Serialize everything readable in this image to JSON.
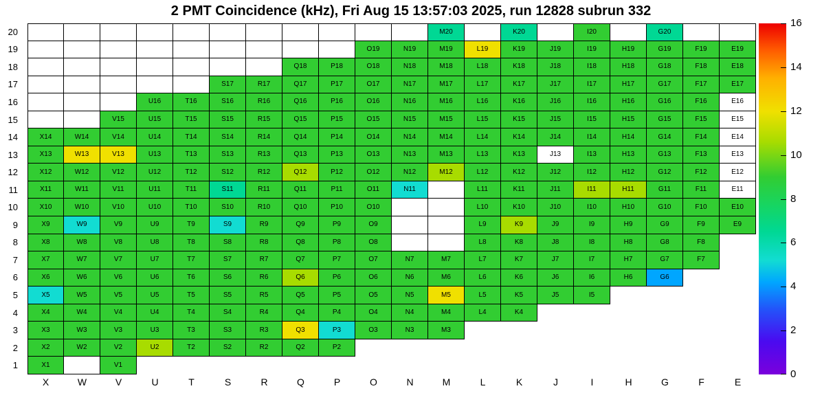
{
  "title": "2 PMT Coincidence (kHz), Fri Aug 15 13:57:03 2025, run 12828 subrun 332",
  "chart_data": {
    "type": "heatmap",
    "title": "2 PMT Coincidence (kHz), Fri Aug 15 13:57:03 2025, run 12828 subrun 332",
    "unit": "kHz",
    "columns": [
      "X",
      "W",
      "V",
      "U",
      "T",
      "S",
      "R",
      "Q",
      "P",
      "O",
      "N",
      "M",
      "L",
      "K",
      "J",
      "I",
      "H",
      "G",
      "F",
      "E"
    ],
    "row_labels_top_to_bottom": [
      "20",
      "19",
      "18",
      "17",
      "16",
      "15",
      "14",
      "13",
      "12",
      "11",
      "10",
      "9",
      "8",
      "7",
      "6",
      "5",
      "4",
      "3",
      "2",
      "1"
    ],
    "palette": {
      "g": "#32CD32",
      "yg": "#A8DC00",
      "y": "#F0E000",
      "c": "#12DCD2",
      "t": "#00D894",
      "b": "#00A6FF",
      "w": "#FFFFFF"
    },
    "approx_value_kHz": {
      "g": 9,
      "yg": 10.5,
      "y": 12,
      "c": 5,
      "t": 7,
      "b": 4,
      "w": null
    },
    "cells": [
      [
        "w",
        "w",
        "w",
        "w",
        "w",
        "w",
        "w",
        "w",
        "w",
        "w",
        "w",
        [
          "M20",
          "t"
        ],
        "w",
        [
          "K20",
          "t"
        ],
        "w",
        [
          "I20",
          "g"
        ],
        "w",
        [
          "G20",
          "t"
        ],
        "w",
        "w"
      ],
      [
        "w",
        "w",
        "w",
        "w",
        "w",
        "w",
        "w",
        "w",
        "w",
        [
          "O19",
          "g"
        ],
        [
          "N19",
          "g"
        ],
        [
          "M19",
          "g"
        ],
        [
          "L19",
          "y"
        ],
        [
          "K19",
          "g"
        ],
        [
          "J19",
          "g"
        ],
        [
          "I19",
          "g"
        ],
        [
          "H19",
          "g"
        ],
        [
          "G19",
          "g"
        ],
        [
          "F19",
          "g"
        ],
        [
          "E19",
          "g"
        ]
      ],
      [
        "w",
        "w",
        "w",
        "w",
        "w",
        "w",
        "w",
        [
          "Q18",
          "g"
        ],
        [
          "P18",
          "g"
        ],
        [
          "O18",
          "g"
        ],
        [
          "N18",
          "g"
        ],
        [
          "M18",
          "g"
        ],
        [
          "L18",
          "g"
        ],
        [
          "K18",
          "g"
        ],
        [
          "J18",
          "g"
        ],
        [
          "I18",
          "g"
        ],
        [
          "H18",
          "g"
        ],
        [
          "G18",
          "g"
        ],
        [
          "F18",
          "g"
        ],
        [
          "E18",
          "g"
        ]
      ],
      [
        "w",
        "w",
        "w",
        "w",
        "w",
        [
          "S17",
          "g"
        ],
        [
          "R17",
          "g"
        ],
        [
          "Q17",
          "g"
        ],
        [
          "P17",
          "g"
        ],
        [
          "O17",
          "g"
        ],
        [
          "N17",
          "g"
        ],
        [
          "M17",
          "g"
        ],
        [
          "L17",
          "g"
        ],
        [
          "K17",
          "g"
        ],
        [
          "J17",
          "g"
        ],
        [
          "I17",
          "g"
        ],
        [
          "H17",
          "g"
        ],
        [
          "G17",
          "g"
        ],
        [
          "F17",
          "g"
        ],
        [
          "E17",
          "g"
        ]
      ],
      [
        "w",
        "w",
        "w",
        [
          "U16",
          "g"
        ],
        [
          "T16",
          "g"
        ],
        [
          "S16",
          "g"
        ],
        [
          "R16",
          "g"
        ],
        [
          "Q16",
          "g"
        ],
        [
          "P16",
          "g"
        ],
        [
          "O16",
          "g"
        ],
        [
          "N16",
          "g"
        ],
        [
          "M16",
          "g"
        ],
        [
          "L16",
          "g"
        ],
        [
          "K16",
          "g"
        ],
        [
          "J16",
          "g"
        ],
        [
          "I16",
          "g"
        ],
        [
          "H16",
          "g"
        ],
        [
          "G16",
          "g"
        ],
        [
          "F16",
          "g"
        ],
        [
          "E16",
          "w"
        ]
      ],
      [
        "w",
        "w",
        [
          "V15",
          "g"
        ],
        [
          "U15",
          "g"
        ],
        [
          "T15",
          "g"
        ],
        [
          "S15",
          "g"
        ],
        [
          "R15",
          "g"
        ],
        [
          "Q15",
          "g"
        ],
        [
          "P15",
          "g"
        ],
        [
          "O15",
          "g"
        ],
        [
          "N15",
          "g"
        ],
        [
          "M15",
          "g"
        ],
        [
          "L15",
          "g"
        ],
        [
          "K15",
          "g"
        ],
        [
          "J15",
          "g"
        ],
        [
          "I15",
          "g"
        ],
        [
          "H15",
          "g"
        ],
        [
          "G15",
          "g"
        ],
        [
          "F15",
          "g"
        ],
        [
          "E15",
          "w"
        ]
      ],
      [
        [
          "X14",
          "g"
        ],
        [
          "W14",
          "g"
        ],
        [
          "V14",
          "g"
        ],
        [
          "U14",
          "g"
        ],
        [
          "T14",
          "g"
        ],
        [
          "S14",
          "g"
        ],
        [
          "R14",
          "g"
        ],
        [
          "Q14",
          "g"
        ],
        [
          "P14",
          "g"
        ],
        [
          "O14",
          "g"
        ],
        [
          "N14",
          "g"
        ],
        [
          "M14",
          "g"
        ],
        [
          "L14",
          "g"
        ],
        [
          "K14",
          "g"
        ],
        [
          "J14",
          "g"
        ],
        [
          "I14",
          "g"
        ],
        [
          "H14",
          "g"
        ],
        [
          "G14",
          "g"
        ],
        [
          "F14",
          "g"
        ],
        [
          "E14",
          "w"
        ]
      ],
      [
        [
          "X13",
          "g"
        ],
        [
          "W13",
          "y"
        ],
        [
          "V13",
          "y"
        ],
        [
          "U13",
          "g"
        ],
        [
          "T13",
          "g"
        ],
        [
          "S13",
          "g"
        ],
        [
          "R13",
          "g"
        ],
        [
          "Q13",
          "g"
        ],
        [
          "P13",
          "g"
        ],
        [
          "O13",
          "g"
        ],
        [
          "N13",
          "g"
        ],
        [
          "M13",
          "g"
        ],
        [
          "L13",
          "g"
        ],
        [
          "K13",
          "g"
        ],
        [
          "J13",
          "w"
        ],
        [
          "I13",
          "g"
        ],
        [
          "H13",
          "g"
        ],
        [
          "G13",
          "g"
        ],
        [
          "F13",
          "g"
        ],
        [
          "E13",
          "w"
        ]
      ],
      [
        [
          "X12",
          "g"
        ],
        [
          "W12",
          "g"
        ],
        [
          "V12",
          "g"
        ],
        [
          "U12",
          "g"
        ],
        [
          "T12",
          "g"
        ],
        [
          "S12",
          "g"
        ],
        [
          "R12",
          "g"
        ],
        [
          "Q12",
          "yg"
        ],
        [
          "P12",
          "g"
        ],
        [
          "O12",
          "g"
        ],
        [
          "N12",
          "g"
        ],
        [
          "M12",
          "yg"
        ],
        [
          "L12",
          "g"
        ],
        [
          "K12",
          "g"
        ],
        [
          "J12",
          "g"
        ],
        [
          "I12",
          "g"
        ],
        [
          "H12",
          "g"
        ],
        [
          "G12",
          "g"
        ],
        [
          "F12",
          "g"
        ],
        [
          "E12",
          "w"
        ]
      ],
      [
        [
          "X11",
          "g"
        ],
        [
          "W11",
          "g"
        ],
        [
          "V11",
          "g"
        ],
        [
          "U11",
          "g"
        ],
        [
          "T11",
          "g"
        ],
        [
          "S11",
          "t"
        ],
        [
          "R11",
          "g"
        ],
        [
          "Q11",
          "g"
        ],
        [
          "P11",
          "g"
        ],
        [
          "O11",
          "g"
        ],
        [
          "N11",
          "c"
        ],
        "w",
        [
          "L11",
          "g"
        ],
        [
          "K11",
          "g"
        ],
        [
          "J11",
          "g"
        ],
        [
          "I11",
          "yg"
        ],
        [
          "H11",
          "yg"
        ],
        [
          "G11",
          "g"
        ],
        [
          "F11",
          "g"
        ],
        [
          "E11",
          "w"
        ]
      ],
      [
        [
          "X10",
          "g"
        ],
        [
          "W10",
          "g"
        ],
        [
          "V10",
          "g"
        ],
        [
          "U10",
          "g"
        ],
        [
          "T10",
          "g"
        ],
        [
          "S10",
          "g"
        ],
        [
          "R10",
          "g"
        ],
        [
          "Q10",
          "g"
        ],
        [
          "P10",
          "g"
        ],
        [
          "O10",
          "g"
        ],
        "w",
        "w",
        [
          "L10",
          "g"
        ],
        [
          "K10",
          "g"
        ],
        [
          "J10",
          "g"
        ],
        [
          "I10",
          "g"
        ],
        [
          "H10",
          "g"
        ],
        [
          "G10",
          "g"
        ],
        [
          "F10",
          "g"
        ],
        [
          "E10",
          "g"
        ]
      ],
      [
        [
          "X9",
          "g"
        ],
        [
          "W9",
          "c"
        ],
        [
          "V9",
          "g"
        ],
        [
          "U9",
          "g"
        ],
        [
          "T9",
          "g"
        ],
        [
          "S9",
          "c"
        ],
        [
          "R9",
          "g"
        ],
        [
          "Q9",
          "g"
        ],
        [
          "P9",
          "g"
        ],
        [
          "O9",
          "g"
        ],
        "w",
        "w",
        [
          "L9",
          "g"
        ],
        [
          "K9",
          "yg"
        ],
        [
          "J9",
          "g"
        ],
        [
          "I9",
          "g"
        ],
        [
          "H9",
          "g"
        ],
        [
          "G9",
          "g"
        ],
        [
          "F9",
          "g"
        ],
        [
          "E9",
          "g"
        ]
      ],
      [
        [
          "X8",
          "g"
        ],
        [
          "W8",
          "g"
        ],
        [
          "V8",
          "g"
        ],
        [
          "U8",
          "g"
        ],
        [
          "T8",
          "g"
        ],
        [
          "S8",
          "g"
        ],
        [
          "R8",
          "g"
        ],
        [
          "Q8",
          "g"
        ],
        [
          "P8",
          "g"
        ],
        [
          "O8",
          "g"
        ],
        "w",
        "w",
        [
          "L8",
          "g"
        ],
        [
          "K8",
          "g"
        ],
        [
          "J8",
          "g"
        ],
        [
          "I8",
          "g"
        ],
        [
          "H8",
          "g"
        ],
        [
          "G8",
          "g"
        ],
        [
          "F8",
          "g"
        ],
        0
      ],
      [
        [
          "X7",
          "g"
        ],
        [
          "W7",
          "g"
        ],
        [
          "V7",
          "g"
        ],
        [
          "U7",
          "g"
        ],
        [
          "T7",
          "g"
        ],
        [
          "S7",
          "g"
        ],
        [
          "R7",
          "g"
        ],
        [
          "Q7",
          "g"
        ],
        [
          "P7",
          "g"
        ],
        [
          "O7",
          "g"
        ],
        [
          "N7",
          "g"
        ],
        [
          "M7",
          "g"
        ],
        [
          "L7",
          "g"
        ],
        [
          "K7",
          "g"
        ],
        [
          "J7",
          "g"
        ],
        [
          "I7",
          "g"
        ],
        [
          "H7",
          "g"
        ],
        [
          "G7",
          "g"
        ],
        [
          "F7",
          "g"
        ],
        0
      ],
      [
        [
          "X6",
          "g"
        ],
        [
          "W6",
          "g"
        ],
        [
          "V6",
          "g"
        ],
        [
          "U6",
          "g"
        ],
        [
          "T6",
          "g"
        ],
        [
          "S6",
          "g"
        ],
        [
          "R6",
          "g"
        ],
        [
          "Q6",
          "yg"
        ],
        [
          "P6",
          "g"
        ],
        [
          "O6",
          "g"
        ],
        [
          "N6",
          "g"
        ],
        [
          "M6",
          "g"
        ],
        [
          "L6",
          "g"
        ],
        [
          "K6",
          "g"
        ],
        [
          "J6",
          "g"
        ],
        [
          "I6",
          "g"
        ],
        [
          "H6",
          "g"
        ],
        [
          "G6",
          "b"
        ],
        0,
        0
      ],
      [
        [
          "X5",
          "c"
        ],
        [
          "W5",
          "g"
        ],
        [
          "V5",
          "g"
        ],
        [
          "U5",
          "g"
        ],
        [
          "T5",
          "g"
        ],
        [
          "S5",
          "g"
        ],
        [
          "R5",
          "g"
        ],
        [
          "Q5",
          "g"
        ],
        [
          "P5",
          "g"
        ],
        [
          "O5",
          "g"
        ],
        [
          "N5",
          "g"
        ],
        [
          "M5",
          "y"
        ],
        [
          "L5",
          "g"
        ],
        [
          "K5",
          "g"
        ],
        [
          "J5",
          "g"
        ],
        [
          "I5",
          "g"
        ],
        0,
        0,
        0,
        0
      ],
      [
        [
          "X4",
          "g"
        ],
        [
          "W4",
          "g"
        ],
        [
          "V4",
          "g"
        ],
        [
          "U4",
          "g"
        ],
        [
          "T4",
          "g"
        ],
        [
          "S4",
          "g"
        ],
        [
          "R4",
          "g"
        ],
        [
          "Q4",
          "g"
        ],
        [
          "P4",
          "g"
        ],
        [
          "O4",
          "g"
        ],
        [
          "N4",
          "g"
        ],
        [
          "M4",
          "g"
        ],
        [
          "L4",
          "g"
        ],
        [
          "K4",
          "g"
        ],
        0,
        0,
        0,
        0,
        0,
        0
      ],
      [
        [
          "X3",
          "g"
        ],
        [
          "W3",
          "g"
        ],
        [
          "V3",
          "g"
        ],
        [
          "U3",
          "g"
        ],
        [
          "T3",
          "g"
        ],
        [
          "S3",
          "g"
        ],
        [
          "R3",
          "g"
        ],
        [
          "Q3",
          "y"
        ],
        [
          "P3",
          "c"
        ],
        [
          "O3",
          "g"
        ],
        [
          "N3",
          "g"
        ],
        [
          "M3",
          "g"
        ],
        0,
        0,
        0,
        0,
        0,
        0,
        0,
        0
      ],
      [
        [
          "X2",
          "g"
        ],
        [
          "W2",
          "g"
        ],
        [
          "V2",
          "g"
        ],
        [
          "U2",
          "yg"
        ],
        [
          "T2",
          "g"
        ],
        [
          "S2",
          "g"
        ],
        [
          "R2",
          "g"
        ],
        [
          "Q2",
          "g"
        ],
        [
          "P2",
          "g"
        ],
        0,
        0,
        0,
        0,
        0,
        0,
        0,
        0,
        0,
        0,
        0
      ],
      [
        [
          "X1",
          "g"
        ],
        "w",
        [
          "V1",
          "g"
        ],
        0,
        0,
        0,
        0,
        0,
        0,
        0,
        0,
        0,
        0,
        0,
        0,
        0,
        0,
        0,
        0,
        0
      ]
    ],
    "colorbar": {
      "min": 0,
      "max": 16,
      "ticks": [
        0,
        2,
        4,
        6,
        8,
        10,
        12,
        14,
        16
      ],
      "gradient_stops": [
        [
          0,
          "#7A00DC"
        ],
        [
          1.5,
          "#4A0AF0"
        ],
        [
          3,
          "#2255FA"
        ],
        [
          4.2,
          "#00A6FF"
        ],
        [
          5.2,
          "#12DCD2"
        ],
        [
          6.5,
          "#00D894"
        ],
        [
          7.7,
          "#16D562"
        ],
        [
          9,
          "#32CD32"
        ],
        [
          10.6,
          "#A8DC00"
        ],
        [
          12,
          "#F0E000"
        ],
        [
          13.5,
          "#FFB000"
        ],
        [
          14.8,
          "#FF5A00"
        ],
        [
          16,
          "#ED0000"
        ]
      ]
    },
    "layout": {
      "legend_position": "right",
      "grid": "per-cell boxes",
      "empty_cells": "white or blank"
    }
  }
}
